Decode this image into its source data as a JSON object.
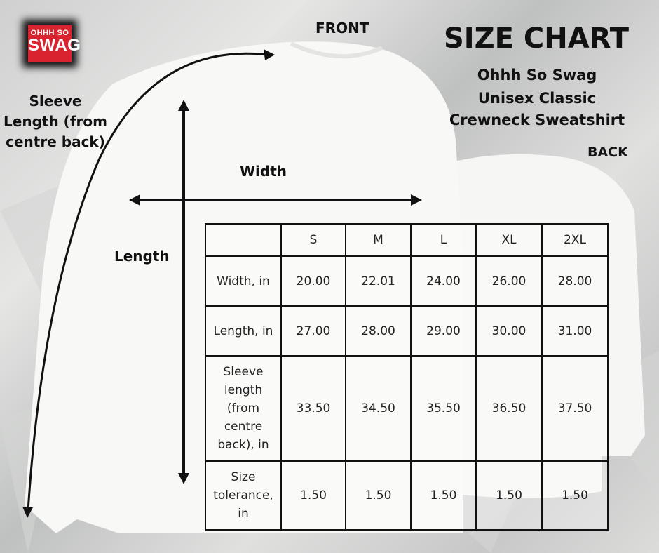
{
  "brand": {
    "logo_text_top": "OHHH SO",
    "logo_text_bottom": "SWAG",
    "logo_color": "#d9232e"
  },
  "title": "SIZE CHART",
  "subtitle_lines": [
    "Ohhh So Swag",
    "Unisex Classic",
    "Crewneck Sweatshirt"
  ],
  "views": {
    "front": "FRONT",
    "back": "BACK"
  },
  "measure_labels": {
    "sleeve": "Sleeve Length (from centre back)",
    "width": "Width",
    "length": "Length"
  },
  "table": {
    "headers": [
      "",
      "S",
      "M",
      "L",
      "XL",
      "2XL"
    ],
    "rows": [
      {
        "label": "Width, in",
        "values": [
          "20.00",
          "22.01",
          "24.00",
          "26.00",
          "28.00"
        ]
      },
      {
        "label": "Length, in",
        "values": [
          "27.00",
          "28.00",
          "29.00",
          "30.00",
          "31.00"
        ]
      },
      {
        "label": "Sleeve length (from centre back), in",
        "values": [
          "33.50",
          "34.50",
          "35.50",
          "36.50",
          "37.50"
        ]
      },
      {
        "label": "Size tolerance, in",
        "values": [
          "1.50",
          "1.50",
          "1.50",
          "1.50",
          "1.50"
        ]
      }
    ]
  }
}
